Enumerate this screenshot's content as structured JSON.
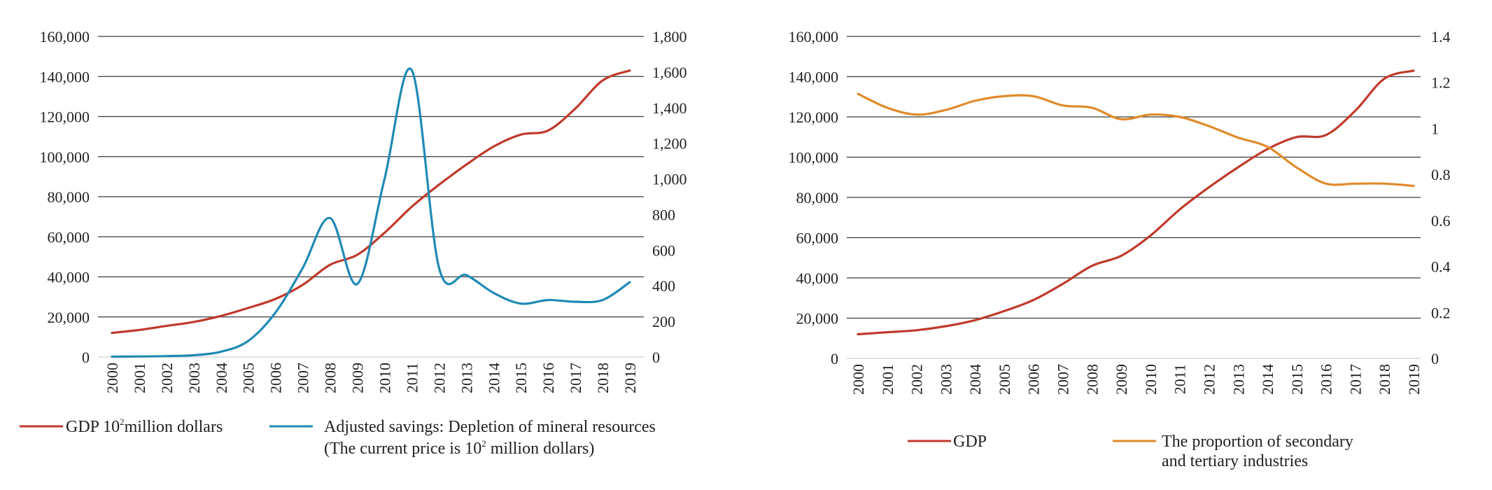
{
  "chart_data": [
    {
      "type": "line",
      "categories": [
        "2000",
        "2001",
        "2002",
        "2003",
        "2004",
        "2005",
        "2006",
        "2007",
        "2008",
        "2009",
        "2010",
        "2011",
        "2012",
        "2013",
        "2014",
        "2015",
        "2016",
        "2017",
        "2018",
        "2019"
      ],
      "left_axis": {
        "ylim": [
          0,
          160000
        ],
        "ticks": [
          "0",
          "20,000",
          "40,000",
          "60,000",
          "80,000",
          "100,000",
          "120,000",
          "140,000",
          "160,000"
        ]
      },
      "right_axis": {
        "ylim": [
          0,
          1800
        ],
        "ticks": [
          "0",
          "200",
          "400",
          "600",
          "800",
          "1,000",
          "1,200",
          "1,400",
          "1,600",
          "1,800"
        ]
      },
      "series": [
        {
          "name": "GDP",
          "axis": "left",
          "color": "#c0392b",
          "values": [
            12000,
            13500,
            15500,
            17500,
            20500,
            24500,
            29000,
            36000,
            46000,
            51000,
            62000,
            75000,
            86000,
            96000,
            105000,
            111000,
            113000,
            124000,
            138000,
            143000
          ]
        },
        {
          "name": "Adjusted savings: Depletion of mineral resources",
          "axis": "right",
          "color": "#1f8ab3",
          "values": [
            2,
            3,
            5,
            10,
            30,
            90,
            250,
            500,
            780,
            410,
            1000,
            1610,
            500,
            460,
            360,
            300,
            320,
            310,
            320,
            420
          ]
        }
      ],
      "legend": [
        {
          "label_main": "GDP  10",
          "label_sup": "2",
          "label_tail": "million dollars",
          "color": "#c0392b"
        },
        {
          "label_main": "Adjusted savings: Depletion of mineral resources",
          "label_line2_main": "(The current price is 10",
          "label_line2_sup": "2",
          "label_line2_tail": " million dollars)",
          "color": "#1f8ab3"
        }
      ]
    },
    {
      "type": "line",
      "categories": [
        "2000",
        "2001",
        "2002",
        "2003",
        "2004",
        "2005",
        "2006",
        "2007",
        "2008",
        "2009",
        "2010",
        "2011",
        "2012",
        "2013",
        "2014",
        "2015",
        "2016",
        "2017",
        "2018",
        "2019"
      ],
      "left_axis": {
        "ylim": [
          0,
          160000
        ],
        "ticks": [
          "0",
          "20,000",
          "40,000",
          "60,000",
          "80,000",
          "100,000",
          "120,000",
          "140,000",
          "160,000"
        ]
      },
      "right_axis": {
        "ylim": [
          0,
          1.4
        ],
        "ticks": [
          "0",
          "0.2",
          "0.4",
          "0.6",
          "0.8",
          "1",
          "1.2",
          "1.4"
        ]
      },
      "series": [
        {
          "name": "GDP",
          "axis": "left",
          "color": "#c0392b",
          "values": [
            12000,
            13000,
            14000,
            16000,
            19000,
            23500,
            29000,
            37000,
            46000,
            51000,
            61000,
            74000,
            85000,
            95000,
            104000,
            110000,
            111000,
            123000,
            139000,
            143000
          ]
        },
        {
          "name": "The proportion of secondary and tertiary industries",
          "axis": "right",
          "color": "#e08a2a",
          "values": [
            1.15,
            1.09,
            1.06,
            1.08,
            1.12,
            1.14,
            1.14,
            1.1,
            1.09,
            1.04,
            1.06,
            1.05,
            1.01,
            0.96,
            0.92,
            0.83,
            0.76,
            0.76,
            0.76,
            0.75
          ]
        }
      ],
      "legend": [
        {
          "label_main": "GDP",
          "color": "#c0392b"
        },
        {
          "label_main": "The proportion of secondary",
          "label_line2_main": "and tertiary industries",
          "color": "#e08a2a"
        }
      ]
    }
  ]
}
